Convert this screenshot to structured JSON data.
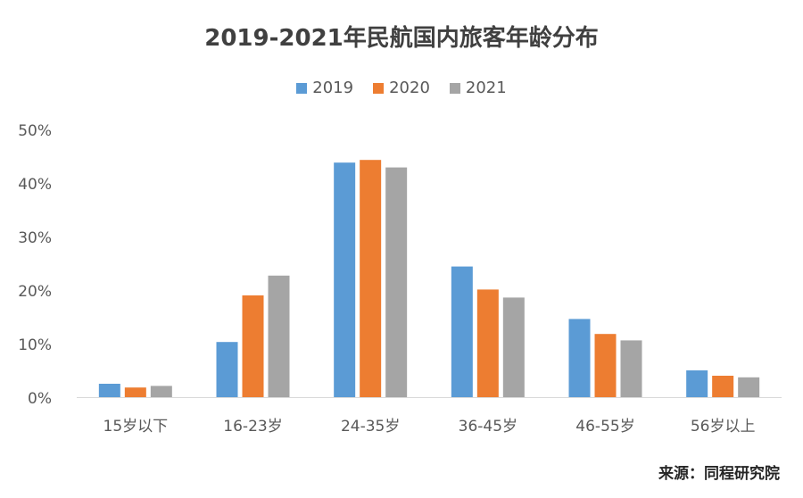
{
  "chart_data": {
    "type": "bar",
    "title": "2019-2021年民航国内旅客年龄分布",
    "categories": [
      "15岁以下",
      "16-23岁",
      "24-35岁",
      "36-45岁",
      "46-55岁",
      "56岁以上"
    ],
    "series": [
      {
        "name": "2019",
        "color": "#5B9BD5",
        "values": [
          2.5,
          10.3,
          43.8,
          24.4,
          14.6,
          5.0
        ]
      },
      {
        "name": "2020",
        "color": "#ED7D31",
        "values": [
          1.8,
          19.0,
          44.3,
          20.1,
          11.8,
          4.0
        ]
      },
      {
        "name": "2021",
        "color": "#A5A5A5",
        "values": [
          2.1,
          22.7,
          42.9,
          18.6,
          10.6,
          3.7
        ]
      }
    ],
    "ylim": [
      0,
      50
    ],
    "yticks": [
      "0%",
      "10%",
      "20%",
      "30%",
      "40%",
      "50%"
    ],
    "legend_position": "top-center",
    "grid": false
  },
  "source": "来源：同程研究院"
}
